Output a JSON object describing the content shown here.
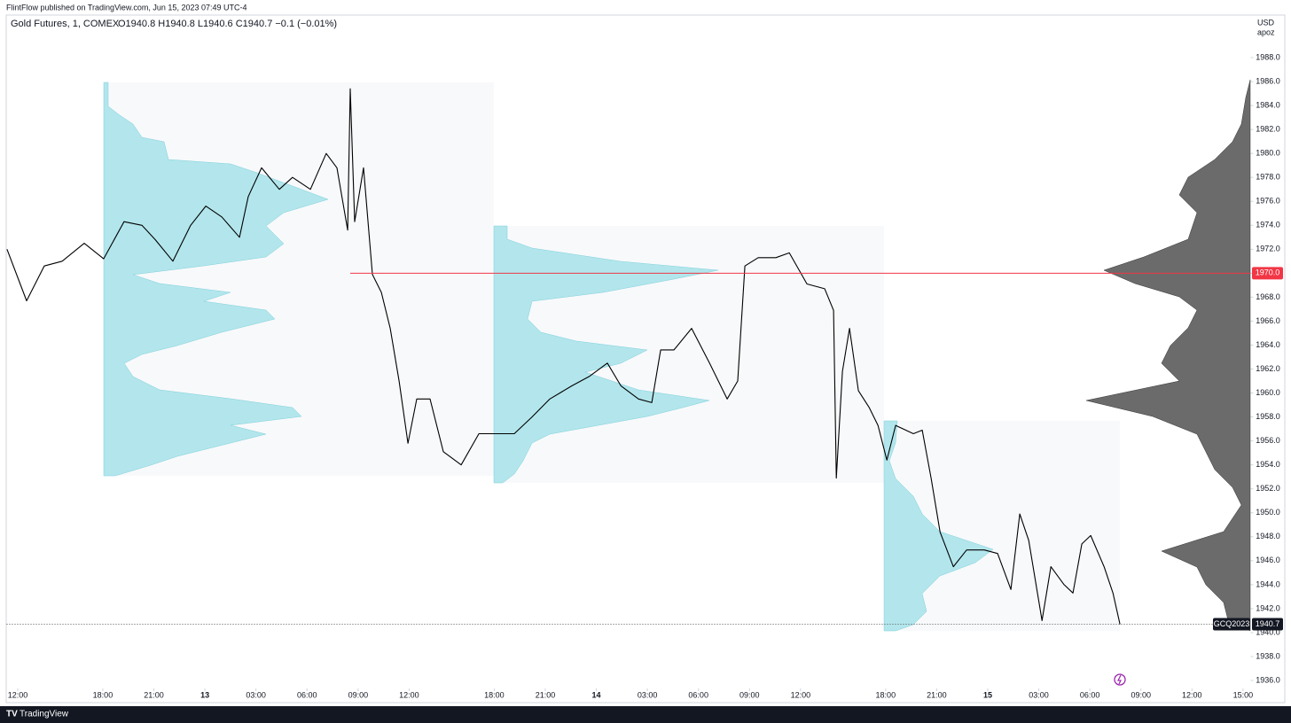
{
  "header": "FlintFlow published on TradingView.com, Jun 15, 2023 07:49 UTC-4",
  "footer": "TradingView",
  "chart_data": {
    "type": "line",
    "title": "Gold Futures, 1, COMEX",
    "ohlc": "O1940.8  H1940.8  L1940.6  C1940.7  −0.1 (−0.01%)",
    "currency": "USD",
    "unit_label": "apoz",
    "x": [
      -0.63,
      0.52,
      1.56,
      2.61,
      3.91,
      5.05,
      6.25,
      7.3,
      8.08,
      9.12,
      10.16,
      11.05,
      11.99,
      13.03,
      13.55,
      14.33,
      15.37,
      16.15,
      17.2,
      18.13,
      18.76,
      19.39,
      19.54,
      19.8,
      20.32,
      20.84,
      21.37,
      21.89,
      22.41,
      22.93,
      23.45,
      24.23,
      25.01,
      26.06,
      27.1,
      28.04,
      29.18,
      30.22,
      31.27,
      32.57,
      33.61,
      34.65,
      35.44,
      36.48,
      37.26,
      37.78,
      38.56,
      39.6,
      40.65,
      41.69,
      42.31,
      42.73,
      43.51,
      44.55,
      45.34,
      46.38,
      47.42,
      47.94,
      48.1,
      48.46,
      48.88,
      49.4,
      50.03,
      50.55,
      51.07,
      51.59,
      52.63,
      53.15,
      53.67,
      54.2,
      54.98,
      55.76,
      56.8,
      57.58,
      58.36,
      58.88,
      59.41,
      60.19,
      60.71,
      61.49,
      62.01,
      62.53,
      63.05,
      63.84,
      64.36,
      64.77
    ],
    "series": [
      {
        "color": "#000000",
        "values": [
          1972,
          1967.7,
          1970.6,
          1971,
          1972.5,
          1971.2,
          1974.3,
          1974,
          1972.8,
          1971,
          1974,
          1975.6,
          1974.7,
          1973,
          1976.4,
          1978.8,
          1977,
          1978,
          1977,
          1980,
          1978.8,
          1973.6,
          1985.4,
          1974.3,
          1978.8,
          1969.9,
          1968.4,
          1965.4,
          1961,
          1955.8,
          1959.5,
          1959.5,
          1955.1,
          1954,
          1956.6,
          1956.6,
          1956.6,
          1958,
          1959.5,
          1960.6,
          1961.4,
          1962.5,
          1960.6,
          1959.5,
          1959.2,
          1963.6,
          1963.6,
          1965.4,
          1962.5,
          1959.5,
          1961,
          1970.6,
          1971.3,
          1971.3,
          1971.7,
          1969.1,
          1968.7,
          1966.9,
          1952.9,
          1961.8,
          1965.4,
          1960.2,
          1958.8,
          1957.3,
          1954.4,
          1957.3,
          1956.6,
          1956.9,
          1952.9,
          1948.4,
          1945.5,
          1946.9,
          1946.9,
          1946.6,
          1943.6,
          1949.9,
          1947.7,
          1941,
          1945.5,
          1944,
          1943.3,
          1947.4,
          1948.1,
          1945.5,
          1943.3,
          1940.7
        ]
      }
    ],
    "xlim": [
      -0.65,
      72.45
    ],
    "xticks": [
      {
        "value": 0,
        "label": "12:00"
      },
      {
        "value": 5,
        "label": "18:00"
      },
      {
        "value": 8,
        "label": "21:00"
      },
      {
        "value": 11,
        "label": "13"
      },
      {
        "value": 14,
        "label": "03:00"
      },
      {
        "value": 17,
        "label": "06:00"
      },
      {
        "value": 20,
        "label": "09:00"
      },
      {
        "value": 23,
        "label": "12:00"
      },
      {
        "value": 28,
        "label": "18:00"
      },
      {
        "value": 31,
        "label": "21:00"
      },
      {
        "value": 34,
        "label": "14"
      },
      {
        "value": 37,
        "label": "03:00"
      },
      {
        "value": 40,
        "label": "06:00"
      },
      {
        "value": 43,
        "label": "09:00"
      },
      {
        "value": 46,
        "label": "12:00"
      },
      {
        "value": 51,
        "label": "18:00"
      },
      {
        "value": 54,
        "label": "21:00"
      },
      {
        "value": 57,
        "label": "15"
      },
      {
        "value": 60,
        "label": "03:00"
      },
      {
        "value": 63,
        "label": "06:00"
      },
      {
        "value": 66,
        "label": "09:00"
      },
      {
        "value": 69,
        "label": "12:00"
      },
      {
        "value": 72,
        "label": "15:00"
      }
    ],
    "ylim": [
      1934.5,
      1990.8
    ],
    "yticks": [
      {
        "value": 1936,
        "label": "1936.0"
      },
      {
        "value": 1938,
        "label": "1938.0"
      },
      {
        "value": 1940,
        "label": "1940.0"
      },
      {
        "value": 1942,
        "label": "1942.0"
      },
      {
        "value": 1944,
        "label": "1944.0"
      },
      {
        "value": 1946,
        "label": "1946.0"
      },
      {
        "value": 1948,
        "label": "1948.0"
      },
      {
        "value": 1950,
        "label": "1950.0"
      },
      {
        "value": 1952,
        "label": "1952.0"
      },
      {
        "value": 1954,
        "label": "1954.0"
      },
      {
        "value": 1956,
        "label": "1956.0"
      },
      {
        "value": 1958,
        "label": "1958.0"
      },
      {
        "value": 1960,
        "label": "1960.0"
      },
      {
        "value": 1962,
        "label": "1962.0"
      },
      {
        "value": 1964,
        "label": "1964.0"
      },
      {
        "value": 1966,
        "label": "1966.0"
      },
      {
        "value": 1968,
        "label": "1968.0"
      },
      {
        "value": 1970,
        "label": "1970.0"
      },
      {
        "value": 1972,
        "label": "1972.0"
      },
      {
        "value": 1974,
        "label": "1974.0"
      },
      {
        "value": 1976,
        "label": "1976.0"
      },
      {
        "value": 1978,
        "label": "1978.0"
      },
      {
        "value": 1980,
        "label": "1980.0"
      },
      {
        "value": 1982,
        "label": "1982.0"
      },
      {
        "value": 1984,
        "label": "1984.0"
      },
      {
        "value": 1986,
        "label": "1986.0"
      },
      {
        "value": 1988,
        "label": "1988.0"
      }
    ],
    "price_line": {
      "value": 1970,
      "label": "1970.0",
      "color": "#f23645"
    },
    "last_price": {
      "value": 1940.7,
      "label": "1940.7",
      "symbol": "GCQ2023"
    }
  }
}
